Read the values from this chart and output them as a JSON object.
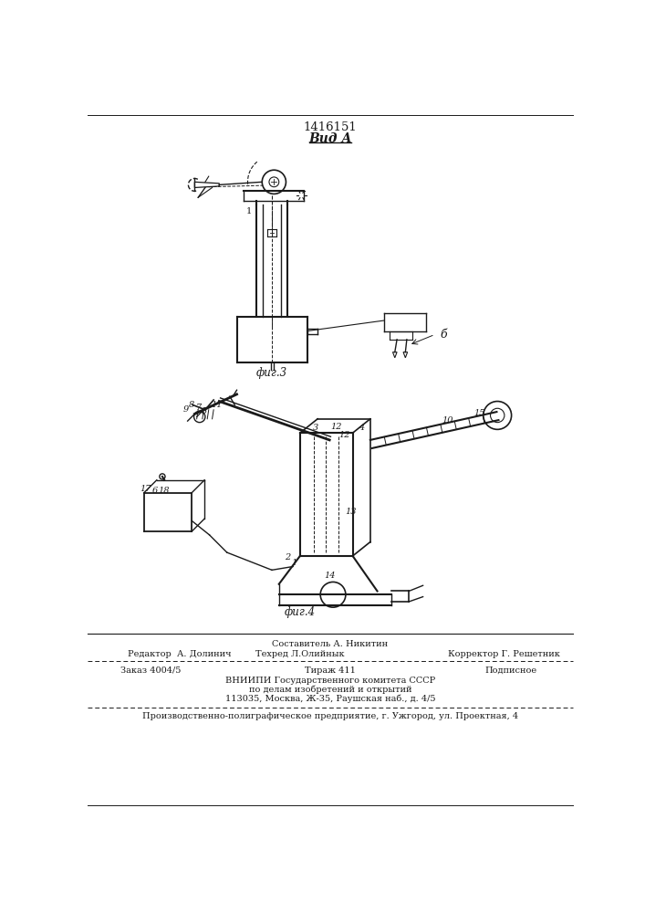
{
  "patent_number": "1416151",
  "view_label": "Вид А",
  "fig3_label": "фиг.3",
  "fig4_label": "фиг.4",
  "footer_line1_center_top": "Составитель А. Никитин",
  "footer_line1_left": "Редактор  А. Долинич",
  "footer_line1_center": "Техред Л.Олийнык",
  "footer_line1_right": "Корректор Г. Решетник",
  "footer_line2_left": "Заказ 4004/5",
  "footer_line2_center": "Тираж 411",
  "footer_line2_right": "Подписное",
  "footer_line3": "ВНИИПИ Государственного комитета СССР",
  "footer_line4": "по делам изобретений и открытий",
  "footer_line5": "113035, Москва, Ж-35, Раушская наб., д. 4/5",
  "footer_line6": "Производственно-полиграфическое предприятие, г. Ужгород, ул. Проектная, 4",
  "bg_color": "#ffffff",
  "line_color": "#1a1a1a"
}
